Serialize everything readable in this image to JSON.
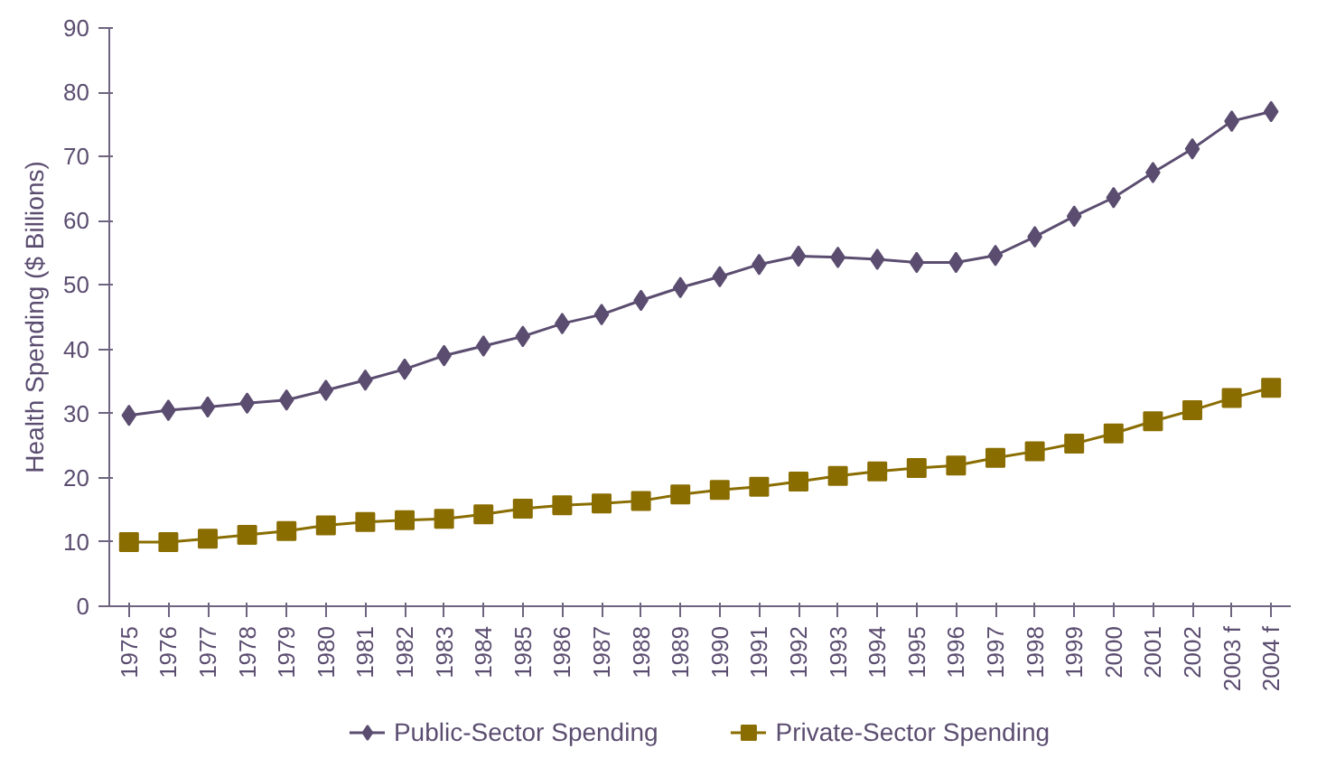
{
  "chart_data": {
    "type": "line",
    "ylabel": "Health Spending ($ Billions)",
    "categories": [
      "1975",
      "1976",
      "1977",
      "1978",
      "1979",
      "1980",
      "1981",
      "1982",
      "1983",
      "1984",
      "1985",
      "1986",
      "1987",
      "1988",
      "1989",
      "1990",
      "1991",
      "1992",
      "1993",
      "1994",
      "1995",
      "1996",
      "1997",
      "1998",
      "1999",
      "2000",
      "2001",
      "2002",
      "2003 f",
      "2004 f"
    ],
    "series": [
      {
        "name": "Public-Sector Spending",
        "color": "#5b4d70",
        "marker": "diamond",
        "values": [
          29.7,
          30.5,
          31,
          31.6,
          32.1,
          33.6,
          35.2,
          36.9,
          39,
          40.5,
          42,
          44,
          45.4,
          47.6,
          49.6,
          51.3,
          53.2,
          54.5,
          54.3,
          54,
          53.5,
          53.5,
          54.6,
          57.5,
          60.7,
          63.6,
          67.5,
          71.2,
          75.5,
          77
        ]
      },
      {
        "name": "Private-Sector Spending",
        "color": "#8a6d00",
        "marker": "square",
        "values": [
          10,
          10,
          10.5,
          11.1,
          11.7,
          12.6,
          13.1,
          13.4,
          13.6,
          14.3,
          15.2,
          15.7,
          16,
          16.4,
          17.4,
          18.1,
          18.6,
          19.4,
          20.3,
          21,
          21.5,
          21.9,
          23.1,
          24.1,
          25.3,
          26.9,
          28.8,
          30.5,
          32.4,
          34
        ]
      }
    ],
    "ylim": [
      0,
      90
    ],
    "yticks": [
      0,
      10,
      20,
      30,
      40,
      50,
      60,
      70,
      80,
      90
    ],
    "grid": false,
    "legend": "bottom"
  }
}
